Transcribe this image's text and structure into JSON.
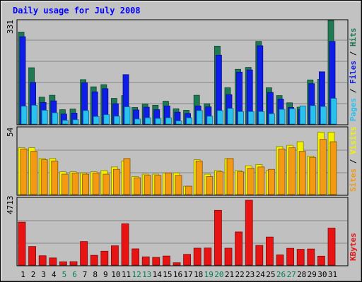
{
  "chart_data": [
    {
      "type": "bar",
      "title": "Daily usage for July 2008",
      "panel": "top",
      "categories": [
        "1",
        "2",
        "3",
        "4",
        "5",
        "6",
        "7",
        "8",
        "9",
        "10",
        "11",
        "12",
        "13",
        "14",
        "15",
        "16",
        "17",
        "18",
        "19",
        "20",
        "21",
        "22",
        "23",
        "24",
        "25",
        "26",
        "27",
        "28",
        "29",
        "30",
        "31"
      ],
      "weekend_days": [
        "5",
        "6",
        "12",
        "13",
        "19",
        "20",
        "26",
        "27"
      ],
      "ymax_label": "331",
      "ylim": [
        0,
        331
      ],
      "series": [
        {
          "name": "Hits",
          "color": "#1e7a52",
          "values": [
            294,
            180,
            86,
            92,
            46,
            48,
            142,
            119,
            126,
            82,
            91,
            53,
            64,
            60,
            73,
            49,
            44,
            92,
            65,
            249,
            116,
            175,
            181,
            264,
            116,
            91,
            68,
            54,
            141,
            143,
            331
          ]
        },
        {
          "name": "Files",
          "color": "#0f1de8",
          "values": [
            279,
            133,
            69,
            74,
            32,
            35,
            132,
            103,
            113,
            65,
            158,
            45,
            54,
            46,
            58,
            38,
            34,
            58,
            55,
            220,
            94,
            166,
            173,
            250,
            101,
            80,
            53,
            46,
            129,
            167,
            264
          ]
        },
        {
          "name": "Pages",
          "color": "#28c2f0",
          "values": [
            57,
            60,
            44,
            36,
            12,
            14,
            43,
            24,
            30,
            25,
            55,
            16,
            20,
            18,
            20,
            10,
            20,
            43,
            25,
            43,
            50,
            40,
            40,
            40,
            33,
            47,
            49,
            58,
            59,
            56,
            82
          ]
        }
      ]
    },
    {
      "type": "bar",
      "panel": "middle",
      "categories": [
        "1",
        "2",
        "3",
        "4",
        "5",
        "6",
        "7",
        "8",
        "9",
        "10",
        "11",
        "12",
        "13",
        "14",
        "15",
        "16",
        "17",
        "18",
        "19",
        "20",
        "21",
        "22",
        "23",
        "24",
        "25",
        "26",
        "27",
        "28",
        "29",
        "30",
        "31"
      ],
      "ymax_label": "54",
      "ylim": [
        0,
        54
      ],
      "series": [
        {
          "name": "Visits",
          "color": "#f2f200",
          "values": [
            39,
            39,
            30,
            30,
            19,
            19,
            18,
            19,
            20,
            23,
            28,
            15,
            17,
            17,
            18,
            18,
            7,
            29,
            17,
            20,
            30,
            20,
            24,
            25,
            20,
            40,
            41,
            44,
            32,
            52,
            52
          ]
        },
        {
          "name": "Sites",
          "color": "#f39a12",
          "values": [
            38,
            36,
            29,
            28,
            17,
            18,
            17,
            18,
            17,
            21,
            30,
            14,
            16,
            16,
            18,
            16,
            7,
            28,
            15,
            19,
            30,
            19,
            22,
            23,
            21,
            38,
            39,
            36,
            31,
            46,
            44
          ]
        }
      ]
    },
    {
      "type": "bar",
      "panel": "bottom",
      "categories": [
        "1",
        "2",
        "3",
        "4",
        "5",
        "6",
        "7",
        "8",
        "9",
        "10",
        "11",
        "12",
        "13",
        "14",
        "15",
        "16",
        "17",
        "18",
        "19",
        "20",
        "21",
        "22",
        "23",
        "24",
        "25",
        "26",
        "27",
        "28",
        "29",
        "30",
        "31"
      ],
      "ymax_label": "4713",
      "ylim": [
        0,
        4713
      ],
      "series": [
        {
          "name": "KBytes",
          "color": "#e81414",
          "values": [
            3120,
            1350,
            680,
            520,
            240,
            250,
            1710,
            710,
            1010,
            1400,
            3000,
            1180,
            600,
            560,
            660,
            170,
            780,
            1230,
            1240,
            3980,
            1230,
            2410,
            4713,
            1430,
            2040,
            740,
            1220,
            1150,
            1170,
            650,
            2690
          ]
        }
      ]
    }
  ],
  "legend": {
    "pages": "Pages",
    "files": "Files",
    "hits": "Hits",
    "sites": "Sites",
    "visits": "Visits",
    "kbytes": "KBytes",
    "slash": "/"
  },
  "colors": {
    "frame_bg": "#c2c2c2",
    "plot_bg": "#c0c0c0",
    "title": "#0000ff",
    "weekday_label": "#000000",
    "weekend_label": "#00805a",
    "gridline": "#848484"
  }
}
